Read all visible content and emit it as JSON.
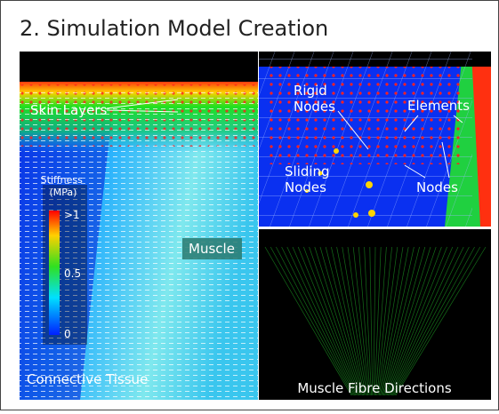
{
  "title": "2. Simulation Model Creation",
  "left_panel": {
    "skin_layers": "Skin Layers",
    "muscle": "Muscle",
    "connective_tissue": "Connective Tissue",
    "colorbar": {
      "title": [
        "Stiffness",
        "(MPa)"
      ],
      "labels": [
        ">1",
        "0.5",
        "0"
      ]
    }
  },
  "top_right_panel": {
    "rigid_nodes": [
      "Rigid",
      "Nodes"
    ],
    "elements": "Elements",
    "sliding_nodes": [
      "Sliding",
      "Nodes"
    ],
    "nodes": "Nodes"
  },
  "bottom_right_panel": {
    "caption": "Muscle Fibre Directions"
  }
}
